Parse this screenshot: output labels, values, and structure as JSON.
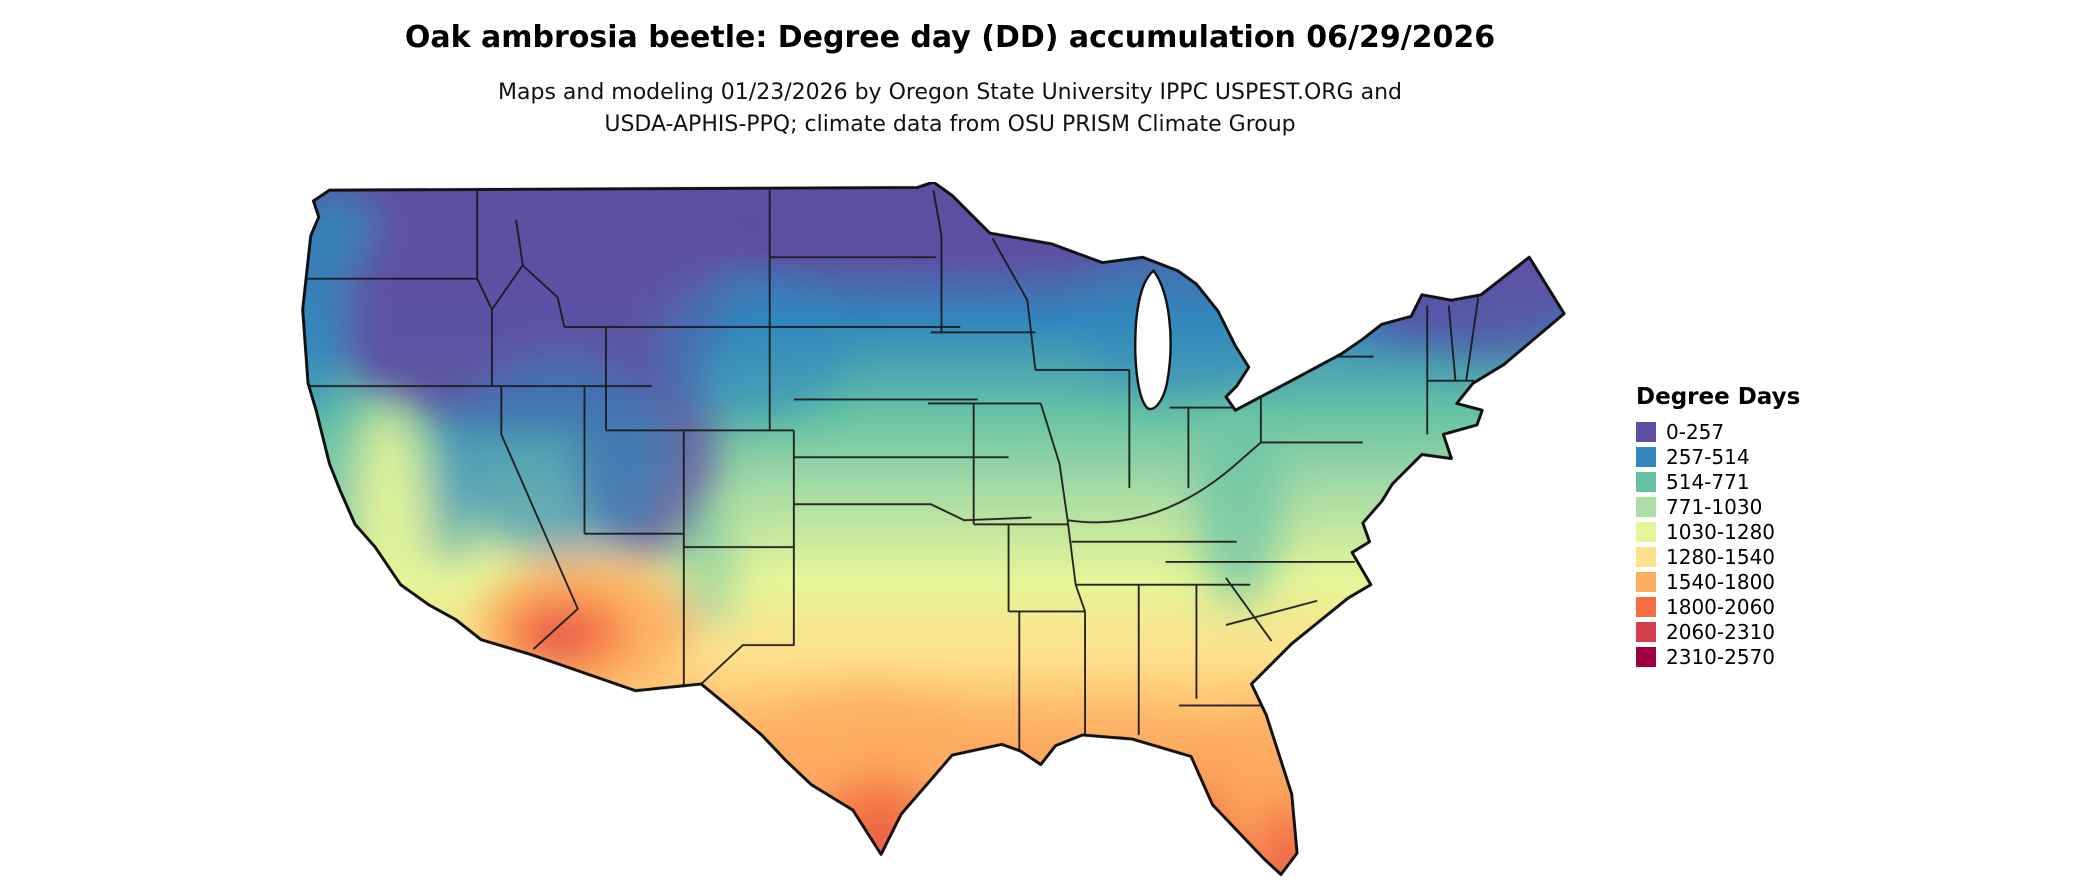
{
  "page": {
    "background_color": "#ffffff"
  },
  "header": {
    "title": "Oak ambrosia beetle: Degree day (DD) accumulation 06/29/2026",
    "subtitle_line1": "Maps and modeling 01/23/2026 by Oregon State University IPPC USPEST.ORG and",
    "subtitle_line2": "USDA-APHIS-PPQ; climate data from OSU PRISM Climate Group"
  },
  "map": {
    "region": "Contiguous United States degree-day accumulation map",
    "outline_color": "#111111",
    "state_border_color": "#1a1a1a",
    "water_color": "#ffffff"
  },
  "legend": {
    "title": "Degree Days",
    "items": [
      {
        "label": "0-257",
        "color": "#5e4fa2"
      },
      {
        "label": "257-514",
        "color": "#3288bd"
      },
      {
        "label": "514-771",
        "color": "#66c2a5"
      },
      {
        "label": "771-1030",
        "color": "#abdda4"
      },
      {
        "label": "1030-1280",
        "color": "#e6f598"
      },
      {
        "label": "1280-1540",
        "color": "#fee08b"
      },
      {
        "label": "1540-1800",
        "color": "#fdae61"
      },
      {
        "label": "1800-2060",
        "color": "#f46d43"
      },
      {
        "label": "2060-2310",
        "color": "#d53e4f"
      },
      {
        "label": "2310-2570",
        "color": "#9e0142"
      }
    ]
  },
  "chart_data": {
    "type": "heatmap",
    "title": "Oak ambrosia beetle: Degree day (DD) accumulation 06/29/2026",
    "legend_title": "Degree Days",
    "bins": [
      "0-257",
      "257-514",
      "514-771",
      "771-1030",
      "1030-1280",
      "1280-1540",
      "1540-1800",
      "1800-2060",
      "2060-2310",
      "2310-2570"
    ],
    "palette": [
      "#5e4fa2",
      "#3288bd",
      "#66c2a5",
      "#abdda4",
      "#e6f598",
      "#fee08b",
      "#fdae61",
      "#f46d43",
      "#d53e4f",
      "#9e0142"
    ],
    "legend_position": "right",
    "geography_note": "Low accumulation (purple/blue) across northern tier and western mountains; mid values (green/yellow) across central U.S.; high values (orange/red) in southern Arizona, south Texas, Gulf Coast and Florida"
  }
}
